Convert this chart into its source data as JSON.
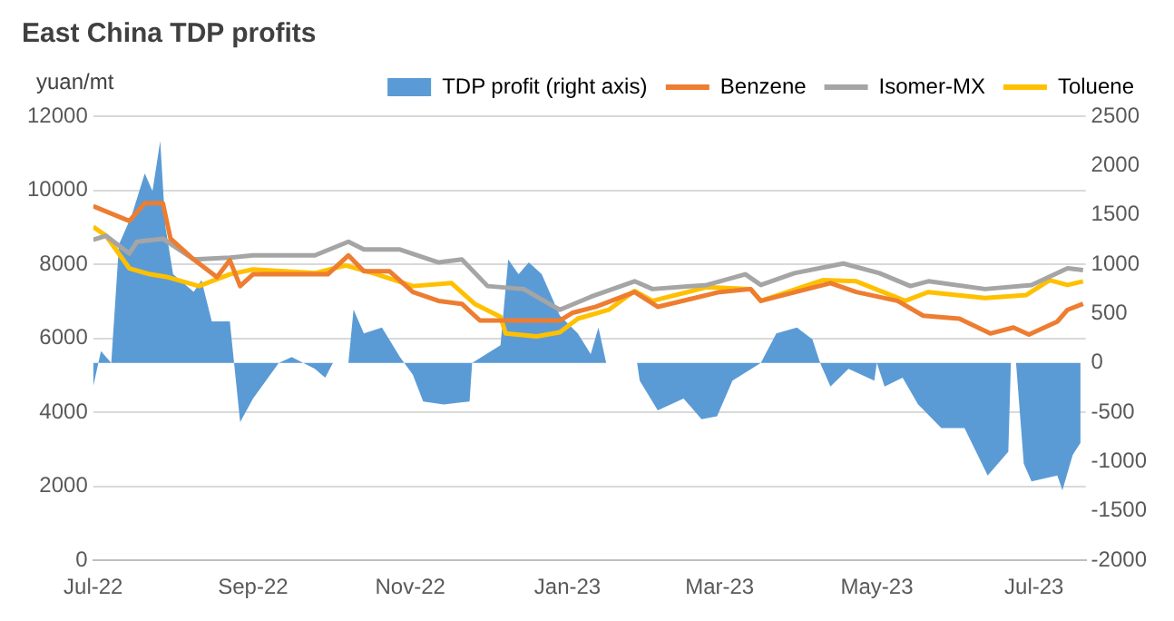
{
  "chart_data": {
    "type": "line",
    "title": "East China TDP profits",
    "ylabel": "yuan/mt",
    "xlim": [
      "2022-07-01",
      "2023-07-21"
    ],
    "xticks": [
      {
        "value": "2022-07-01",
        "label": "Jul-22"
      },
      {
        "value": "2022-09-01",
        "label": "Sep-22"
      },
      {
        "value": "2022-11-01",
        "label": "Nov-22"
      },
      {
        "value": "2023-01-01",
        "label": "Jan-23"
      },
      {
        "value": "2023-03-01",
        "label": "Mar-23"
      },
      {
        "value": "2023-05-01",
        "label": "May-23"
      },
      {
        "value": "2023-07-01",
        "label": "Jul-23"
      }
    ],
    "ylim": [
      0,
      12000
    ],
    "yticks": [
      0,
      2000,
      4000,
      6000,
      8000,
      10000,
      12000
    ],
    "y2lim": [
      -2000,
      2500
    ],
    "y2ticks": [
      -2000,
      -1500,
      -1000,
      -500,
      0,
      500,
      1000,
      1500,
      2000,
      2500
    ],
    "grid": "y",
    "legend": "top",
    "marker": "none",
    "line_style": "solid",
    "series": [
      {
        "name": "TDP profit (right axis)",
        "type": "area",
        "axis": "y2",
        "color": "#5b9bd5",
        "x": [
          "2022-07-01",
          "2022-07-04",
          "2022-07-08",
          "2022-07-11",
          "2022-07-16",
          "2022-07-21",
          "2022-07-24",
          "2022-07-27",
          "2022-07-29",
          "2022-08-01",
          "2022-08-09",
          "2022-08-12",
          "2022-08-16",
          "2022-08-23",
          "2022-08-27",
          "2022-09-01",
          "2022-09-11",
          "2022-09-16",
          "2022-09-25",
          "2022-09-29",
          "2022-10-02",
          "2022-10-08",
          "2022-10-10",
          "2022-10-14",
          "2022-10-21",
          "2022-10-28",
          "2022-11-02",
          "2022-11-06",
          "2022-11-14",
          "2022-11-24",
          "2022-11-25",
          "2022-12-06",
          "2022-12-09",
          "2022-12-13",
          "2022-12-17",
          "2022-12-22",
          "2022-12-29",
          "2023-01-05",
          "2023-01-10",
          "2023-01-13",
          "2023-01-16",
          "2023-01-22",
          "2023-01-28",
          "2023-01-29",
          "2023-02-05",
          "2023-02-15",
          "2023-02-22",
          "2023-02-28",
          "2023-03-06",
          "2023-03-17",
          "2023-03-23",
          "2023-03-31",
          "2023-04-06",
          "2023-04-09",
          "2023-04-13",
          "2023-04-20",
          "2023-04-30",
          "2023-05-01",
          "2023-05-04",
          "2023-05-11",
          "2023-05-17",
          "2023-05-26",
          "2023-06-04",
          "2023-06-13",
          "2023-06-21",
          "2023-06-22",
          "2023-06-24",
          "2023-06-27",
          "2023-06-30",
          "2023-07-10",
          "2023-07-12",
          "2023-07-16",
          "2023-07-19"
        ],
        "values": [
          -240,
          120,
          0,
          1200,
          1500,
          1920,
          1740,
          2250,
          1380,
          900,
          720,
          840,
          420,
          420,
          -600,
          -360,
          0,
          60,
          -60,
          -150,
          0,
          0,
          540,
          300,
          360,
          60,
          -120,
          -390,
          -420,
          -390,
          0,
          180,
          1050,
          900,
          1020,
          900,
          480,
          300,
          90,
          360,
          0,
          0,
          0,
          -180,
          -480,
          -360,
          -570,
          -540,
          -180,
          0,
          300,
          360,
          240,
          0,
          -240,
          -60,
          -180,
          0,
          -240,
          -150,
          -420,
          -660,
          -660,
          -1140,
          -900,
          0,
          0,
          -1020,
          -1200,
          -1140,
          -1290,
          -930,
          -810
        ]
      },
      {
        "name": "Benzene",
        "type": "line",
        "color": "#ed7d31",
        "x": [
          "2022-07-01",
          "2022-07-15",
          "2022-07-21",
          "2022-07-28",
          "2022-07-31",
          "2022-08-09",
          "2022-08-18",
          "2022-08-23",
          "2022-08-27",
          "2022-09-01",
          "2022-09-30",
          "2022-10-08",
          "2022-10-14",
          "2022-10-24",
          "2022-11-02",
          "2022-11-12",
          "2022-11-21",
          "2022-11-28",
          "2022-12-10",
          "2022-12-29",
          "2023-01-03",
          "2023-01-12",
          "2023-01-27",
          "2023-02-05",
          "2023-03-01",
          "2023-03-13",
          "2023-03-17",
          "2023-04-13",
          "2023-04-23",
          "2023-05-09",
          "2023-05-19",
          "2023-06-02",
          "2023-06-14",
          "2023-06-23",
          "2023-06-29",
          "2023-07-10",
          "2023-07-14",
          "2023-07-20"
        ],
        "values": [
          9570,
          9170,
          9650,
          9650,
          8690,
          8130,
          7650,
          8110,
          7410,
          7730,
          7730,
          8240,
          7810,
          7810,
          7250,
          7010,
          6930,
          6480,
          6480,
          6480,
          6690,
          6850,
          7250,
          6850,
          7250,
          7330,
          7010,
          7490,
          7250,
          7010,
          6610,
          6530,
          6130,
          6290,
          6100,
          6450,
          6770,
          6930
        ]
      },
      {
        "name": "Isomer-MX",
        "type": "line",
        "color": "#a5a5a5",
        "x": [
          "2022-07-01",
          "2022-07-06",
          "2022-07-15",
          "2022-07-18",
          "2022-07-28",
          "2022-08-09",
          "2022-08-23",
          "2022-09-01",
          "2022-09-25",
          "2022-10-08",
          "2022-10-14",
          "2022-10-28",
          "2022-11-12",
          "2022-11-21",
          "2022-12-01",
          "2022-12-15",
          "2022-12-29",
          "2023-01-10",
          "2023-01-27",
          "2023-02-03",
          "2023-02-24",
          "2023-03-11",
          "2023-03-17",
          "2023-03-30",
          "2023-04-18",
          "2023-05-02",
          "2023-05-14",
          "2023-05-21",
          "2023-06-12",
          "2023-06-30",
          "2023-07-14",
          "2023-07-20"
        ],
        "values": [
          8660,
          8770,
          8290,
          8610,
          8690,
          8130,
          8180,
          8240,
          8240,
          8610,
          8400,
          8400,
          8050,
          8130,
          7410,
          7330,
          6770,
          7120,
          7540,
          7330,
          7440,
          7730,
          7440,
          7760,
          8020,
          7760,
          7410,
          7540,
          7330,
          7440,
          7890,
          7840
        ]
      },
      {
        "name": "Toluene",
        "type": "line",
        "color": "#ffc000",
        "x": [
          "2022-07-01",
          "2022-07-06",
          "2022-07-15",
          "2022-07-23",
          "2022-07-30",
          "2022-08-11",
          "2022-08-23",
          "2022-09-01",
          "2022-09-25",
          "2022-10-07",
          "2022-10-19",
          "2022-11-02",
          "2022-11-17",
          "2022-11-26",
          "2022-12-06",
          "2022-12-08",
          "2022-12-20",
          "2022-12-29",
          "2023-01-05",
          "2023-01-17",
          "2023-01-27",
          "2023-02-03",
          "2023-02-24",
          "2023-03-13",
          "2023-03-17",
          "2023-04-10",
          "2023-04-23",
          "2023-05-12",
          "2023-05-21",
          "2023-06-12",
          "2023-06-28",
          "2023-07-07",
          "2023-07-14",
          "2023-07-20"
        ],
        "values": [
          9010,
          8770,
          7890,
          7730,
          7650,
          7410,
          7730,
          7860,
          7760,
          7970,
          7730,
          7410,
          7490,
          6930,
          6580,
          6130,
          6050,
          6160,
          6530,
          6770,
          7280,
          7010,
          7380,
          7330,
          7010,
          7570,
          7540,
          7010,
          7250,
          7090,
          7170,
          7570,
          7440,
          7540
        ]
      }
    ]
  }
}
